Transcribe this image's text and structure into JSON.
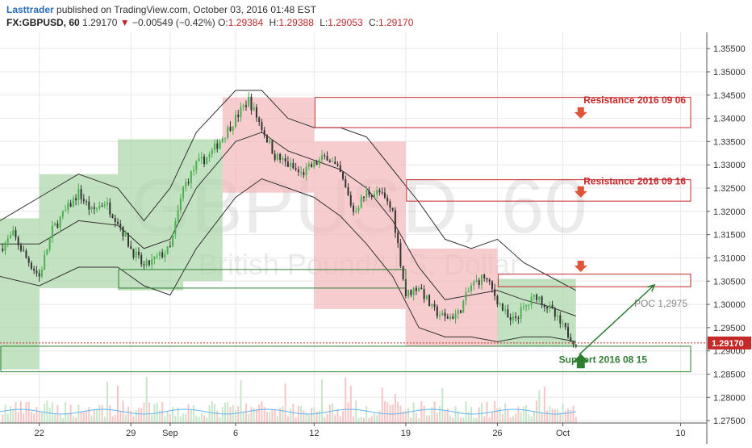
{
  "header": {
    "author": "Lasttrader",
    "published_text": "published on TradingView.com, October 03, 2016 01:48 EST",
    "symbol": "FX:GBPUSD, 60",
    "last": "1.29170",
    "change_arrow": "▼",
    "change": "−0.00549 (−0.42%)",
    "open_label": "O:",
    "open": "1.29384",
    "high_label": "H:",
    "high": "1.29388",
    "low_label": "L:",
    "low": "1.29053",
    "close_label": "C:",
    "close": "1.29170"
  },
  "watermark": {
    "symbol": "GBPUSD, 60",
    "name": "British Pound/U.S. Dollar"
  },
  "chart_data": {
    "type": "line",
    "chart_style": "candlestick",
    "overlays": [
      "bollinger-bands",
      "volume"
    ],
    "grid": true,
    "ylim": [
      1.2745,
      1.3585
    ],
    "y_tick_labels": [
      "1.35500",
      "1.35000",
      "1.34500",
      "1.34000",
      "1.33500",
      "1.33000",
      "1.32500",
      "1.32000",
      "1.31500",
      "1.31000",
      "1.30500",
      "1.30000",
      "1.29500",
      "1.29000",
      "1.28500",
      "1.28000",
      "1.27500"
    ],
    "y_ticks": [
      1.355,
      1.35,
      1.345,
      1.34,
      1.335,
      1.33,
      1.325,
      1.32,
      1.315,
      1.31,
      1.305,
      1.3,
      1.295,
      1.29,
      1.285,
      1.28,
      1.275
    ],
    "x_tick_labels": [
      "22",
      "29",
      "Sep",
      "6",
      "12",
      "19",
      "26",
      "Oct",
      "10"
    ],
    "x_range": [
      "2016-08-19",
      "2016-10-12"
    ],
    "x_ticks": [
      "2016-08-22",
      "2016-08-29",
      "2016-09-01",
      "2016-09-06",
      "2016-09-12",
      "2016-09-19",
      "2016-09-26",
      "2016-10-01",
      "2016-10-10"
    ],
    "last_price_label": "1.29170",
    "last_price": 1.2917,
    "price_path": [
      [
        "2016-08-19",
        1.312
      ],
      [
        "2016-08-20",
        1.315
      ],
      [
        "2016-08-21",
        1.31
      ],
      [
        "2016-08-22",
        1.306
      ],
      [
        "2016-08-23",
        1.316
      ],
      [
        "2016-08-24",
        1.32
      ],
      [
        "2016-08-25",
        1.324
      ],
      [
        "2016-08-26",
        1.32
      ],
      [
        "2016-08-27",
        1.322
      ],
      [
        "2016-08-28",
        1.318
      ],
      [
        "2016-08-29",
        1.312
      ],
      [
        "2016-08-30",
        1.308
      ],
      [
        "2016-08-31",
        1.31
      ],
      [
        "2016-09-01",
        1.312
      ],
      [
        "2016-09-02",
        1.325
      ],
      [
        "2016-09-03",
        1.33
      ],
      [
        "2016-09-04",
        1.332
      ],
      [
        "2016-09-05",
        1.336
      ],
      [
        "2016-09-06",
        1.34
      ],
      [
        "2016-09-07",
        1.344
      ],
      [
        "2016-09-08",
        1.338
      ],
      [
        "2016-09-09",
        1.332
      ],
      [
        "2016-09-10",
        1.33
      ],
      [
        "2016-09-11",
        1.328
      ],
      [
        "2016-09-12",
        1.33
      ],
      [
        "2016-09-13",
        1.332
      ],
      [
        "2016-09-14",
        1.328
      ],
      [
        "2016-09-15",
        1.32
      ],
      [
        "2016-09-16",
        1.324
      ],
      [
        "2016-09-17",
        1.324
      ],
      [
        "2016-09-18",
        1.32
      ],
      [
        "2016-09-19",
        1.302
      ],
      [
        "2016-09-20",
        1.304
      ],
      [
        "2016-09-21",
        1.299
      ],
      [
        "2016-09-22",
        1.297
      ],
      [
        "2016-09-23",
        1.298
      ],
      [
        "2016-09-24",
        1.304
      ],
      [
        "2016-09-25",
        1.306
      ],
      [
        "2016-09-26",
        1.301
      ],
      [
        "2016-09-27",
        1.296
      ],
      [
        "2016-09-28",
        1.299
      ],
      [
        "2016-09-29",
        1.302
      ],
      [
        "2016-09-30",
        1.299
      ],
      [
        "2016-10-01",
        1.295
      ],
      [
        "2016-10-02",
        1.2917
      ]
    ],
    "bollinger": {
      "upper": [
        [
          "2016-08-19",
          1.318
        ],
        [
          "2016-08-22",
          1.323
        ],
        [
          "2016-08-25",
          1.328
        ],
        [
          "2016-08-28",
          1.325
        ],
        [
          "2016-08-30",
          1.318
        ],
        [
          "2016-09-01",
          1.325
        ],
        [
          "2016-09-03",
          1.337
        ],
        [
          "2016-09-06",
          1.346
        ],
        [
          "2016-09-08",
          1.346
        ],
        [
          "2016-09-10",
          1.34
        ],
        [
          "2016-09-12",
          1.338
        ],
        [
          "2016-09-14",
          1.338
        ],
        [
          "2016-09-16",
          1.336
        ],
        [
          "2016-09-18",
          1.329
        ],
        [
          "2016-09-20",
          1.322
        ],
        [
          "2016-09-22",
          1.314
        ],
        [
          "2016-09-24",
          1.312
        ],
        [
          "2016-09-26",
          1.314
        ],
        [
          "2016-09-28",
          1.309
        ],
        [
          "2016-09-30",
          1.306
        ],
        [
          "2016-10-02",
          1.303
        ]
      ],
      "middle": [
        [
          "2016-08-19",
          1.313
        ],
        [
          "2016-08-22",
          1.313
        ],
        [
          "2016-08-25",
          1.318
        ],
        [
          "2016-08-28",
          1.317
        ],
        [
          "2016-08-30",
          1.312
        ],
        [
          "2016-09-01",
          1.314
        ],
        [
          "2016-09-03",
          1.325
        ],
        [
          "2016-09-06",
          1.335
        ],
        [
          "2016-09-08",
          1.337
        ],
        [
          "2016-09-10",
          1.333
        ],
        [
          "2016-09-12",
          1.331
        ],
        [
          "2016-09-14",
          1.329
        ],
        [
          "2016-09-16",
          1.325
        ],
        [
          "2016-09-18",
          1.318
        ],
        [
          "2016-09-20",
          1.308
        ],
        [
          "2016-09-22",
          1.301
        ],
        [
          "2016-09-24",
          1.302
        ],
        [
          "2016-09-26",
          1.303
        ],
        [
          "2016-09-28",
          1.301
        ],
        [
          "2016-09-30",
          1.2995
        ],
        [
          "2016-10-02",
          1.2975
        ]
      ],
      "lower": [
        [
          "2016-08-19",
          1.306
        ],
        [
          "2016-08-22",
          1.304
        ],
        [
          "2016-08-25",
          1.308
        ],
        [
          "2016-08-28",
          1.308
        ],
        [
          "2016-08-30",
          1.304
        ],
        [
          "2016-09-01",
          1.302
        ],
        [
          "2016-09-03",
          1.312
        ],
        [
          "2016-09-06",
          1.323
        ],
        [
          "2016-09-08",
          1.327
        ],
        [
          "2016-09-10",
          1.325
        ],
        [
          "2016-09-12",
          1.323
        ],
        [
          "2016-09-14",
          1.319
        ],
        [
          "2016-09-16",
          1.313
        ],
        [
          "2016-09-18",
          1.306
        ],
        [
          "2016-09-20",
          1.295
        ],
        [
          "2016-09-22",
          1.293
        ],
        [
          "2016-09-24",
          1.293
        ],
        [
          "2016-09-26",
          1.292
        ],
        [
          "2016-09-28",
          1.293
        ],
        [
          "2016-09-30",
          1.293
        ],
        [
          "2016-10-02",
          1.292
        ]
      ]
    },
    "shaded_zones": [
      {
        "kind": "bullish",
        "color": "#a9d6a6",
        "x": [
          "2016-08-19",
          "2016-08-22"
        ],
        "y": [
          1.286,
          1.3185
        ]
      },
      {
        "kind": "bullish",
        "color": "#a9d6a6",
        "x": [
          "2016-08-22",
          "2016-08-28"
        ],
        "y": [
          1.3035,
          1.328
        ]
      },
      {
        "kind": "bullish",
        "color": "#a9d6a6",
        "x": [
          "2016-08-28",
          "2016-09-02"
        ],
        "y": [
          1.303,
          1.3355
        ]
      },
      {
        "kind": "bullish",
        "color": "#a9d6a6",
        "x": [
          "2016-09-02",
          "2016-09-05"
        ],
        "y": [
          1.305,
          1.3355
        ]
      },
      {
        "kind": "bearish",
        "color": "#f3b6bb",
        "x": [
          "2016-09-05",
          "2016-09-12"
        ],
        "y": [
          1.324,
          1.3445
        ]
      },
      {
        "kind": "bearish",
        "color": "#f3b6bb",
        "x": [
          "2016-09-12",
          "2016-09-19"
        ],
        "y": [
          1.299,
          1.335
        ]
      },
      {
        "kind": "bearish",
        "color": "#f3b6bb",
        "x": [
          "2016-09-19",
          "2016-09-26"
        ],
        "y": [
          1.291,
          1.312
        ]
      },
      {
        "kind": "bullish",
        "color": "#a9d6a6",
        "x": [
          "2016-09-26",
          "2016-10-02"
        ],
        "y": [
          1.291,
          1.3055
        ]
      }
    ],
    "boxes": [
      {
        "label": "",
        "color": "#2e7d32",
        "x": [
          "2016-08-28",
          "2016-09-19"
        ],
        "y": [
          1.3035,
          1.3075
        ]
      },
      {
        "label": "Resistance 2016 09 06",
        "color": "#c62828",
        "x": [
          "2016-09-12",
          "2016-10-12"
        ],
        "y": [
          1.338,
          1.3445
        ]
      },
      {
        "label": "Resistance 2016 09 16",
        "color": "#c62828",
        "x": [
          "2016-09-19",
          "2016-10-12"
        ],
        "y": [
          1.3222,
          1.3268
        ]
      },
      {
        "label": "",
        "color": "#c62828",
        "x": [
          "2016-09-26",
          "2016-10-12"
        ],
        "y": [
          1.3038,
          1.3065
        ]
      },
      {
        "label": "Support 2016 08 15",
        "color": "#2e7d32",
        "x": [
          "2016-08-19",
          "2016-10-12"
        ],
        "y": [
          1.2855,
          1.291
        ]
      }
    ],
    "annotations": [
      {
        "text": "Resistance 2016 09 06",
        "color": "#c62828"
      },
      {
        "text": "Resistance 2016 09 16",
        "color": "#c62828"
      },
      {
        "text": "Support 2016 08 15",
        "color": "#2e7d32"
      },
      {
        "text": "POC 1,2975",
        "color": "#888888"
      }
    ],
    "arrows": [
      {
        "direction": "down",
        "color": "#e0553a",
        "at": [
          "2016-10-02",
          1.341
        ]
      },
      {
        "direction": "down",
        "color": "#e0553a",
        "at": [
          "2016-10-02",
          1.324
        ]
      },
      {
        "direction": "down",
        "color": "#e0553a",
        "at": [
          "2016-10-02",
          1.308
        ]
      },
      {
        "direction": "up",
        "color": "#2e7d32",
        "at": [
          "2016-10-02",
          1.288
        ]
      }
    ],
    "trend_line": {
      "color": "#2e7d32",
      "from": [
        "2016-10-02",
        1.2892
      ],
      "to": [
        "2016-10-08",
        1.3042
      ]
    },
    "poc_label": "POC 1,2975",
    "poc": 1.2975
  },
  "colors": {
    "bull_candle": "#4caf50",
    "bear_candle": "#333333",
    "band_line": "#333333",
    "grid": "#e8e8e8",
    "price_line": "#c62828",
    "volume_bull": "#c8e6c9",
    "volume_bear": "#f5c6c6",
    "volume_ma": "#64b5f6"
  }
}
